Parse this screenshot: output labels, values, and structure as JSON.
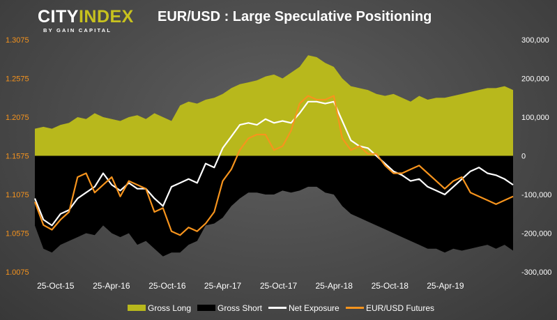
{
  "logo": {
    "part1": "CITY",
    "part2": "INDEX",
    "sub": "BY GAIN CAPITAL"
  },
  "chart_data": {
    "type": "area",
    "title": "EUR/USD : Large Speculative Positioning",
    "x": [
      "2015-08-18",
      "2015-09-15",
      "2015-10-13",
      "2015-11-10",
      "2015-12-08",
      "2016-01-05",
      "2016-02-02",
      "2016-03-01",
      "2016-03-29",
      "2016-04-26",
      "2016-05-24",
      "2016-06-21",
      "2016-07-19",
      "2016-08-16",
      "2016-09-13",
      "2016-10-11",
      "2016-11-08",
      "2016-12-06",
      "2017-01-03",
      "2017-01-31",
      "2017-02-28",
      "2017-03-28",
      "2017-04-25",
      "2017-05-23",
      "2017-06-20",
      "2017-07-18",
      "2017-08-15",
      "2017-09-12",
      "2017-10-10",
      "2017-11-07",
      "2017-12-05",
      "2018-01-02",
      "2018-01-30",
      "2018-02-27",
      "2018-03-27",
      "2018-04-24",
      "2018-05-22",
      "2018-06-19",
      "2018-07-17",
      "2018-08-14",
      "2018-09-11",
      "2018-10-09",
      "2018-11-06",
      "2018-12-04",
      "2019-01-01",
      "2019-01-29",
      "2019-02-26",
      "2019-03-26",
      "2019-04-23",
      "2019-05-21",
      "2019-06-18",
      "2019-07-16",
      "2019-08-13",
      "2019-09-10",
      "2019-10-08",
      "2019-11-05",
      "2019-12-03"
    ],
    "x_tick_labels": [
      "25-Oct-15",
      "25-Apr-16",
      "25-Oct-16",
      "25-Apr-17",
      "25-Oct-17",
      "25-Apr-18",
      "25-Oct-18",
      "25-Apr-19"
    ],
    "x_tick_dates": [
      "2015-10-25",
      "2016-04-25",
      "2016-10-25",
      "2017-04-25",
      "2017-10-25",
      "2018-04-25",
      "2018-10-25",
      "2019-04-25"
    ],
    "xlim": [
      "2015-08-18",
      "2019-12-03"
    ],
    "y_left": {
      "label": "",
      "ticks": [
        "1.3075",
        "1.2575",
        "1.2075",
        "1.1575",
        "1.1075",
        "1.0575",
        "1.0075"
      ],
      "range": [
        1.0075,
        1.3075
      ]
    },
    "y_right": {
      "label": "",
      "ticks": [
        "300,000",
        "200,000",
        "100,000",
        "0",
        "-100,000",
        "-200,000",
        "-300,000"
      ],
      "range": [
        -300000,
        300000
      ]
    },
    "series": [
      {
        "name": "Gross Long",
        "axis": "right",
        "color": "#b8b81c",
        "values": [
          70000,
          75000,
          70000,
          80000,
          85000,
          100000,
          95000,
          110000,
          100000,
          95000,
          90000,
          100000,
          105000,
          95000,
          110000,
          100000,
          90000,
          130000,
          140000,
          135000,
          145000,
          150000,
          160000,
          175000,
          185000,
          190000,
          195000,
          205000,
          210000,
          200000,
          215000,
          230000,
          260000,
          255000,
          240000,
          230000,
          200000,
          180000,
          175000,
          170000,
          160000,
          155000,
          160000,
          150000,
          140000,
          155000,
          145000,
          150000,
          150000,
          155000,
          160000,
          165000,
          170000,
          175000,
          175000,
          180000,
          170000
        ]
      },
      {
        "name": "Gross Short",
        "axis": "right",
        "color": "#000000",
        "values": [
          -180000,
          -240000,
          -250000,
          -230000,
          -220000,
          -210000,
          -200000,
          -205000,
          -180000,
          -200000,
          -210000,
          -200000,
          -230000,
          -220000,
          -240000,
          -260000,
          -250000,
          -250000,
          -230000,
          -220000,
          -180000,
          -175000,
          -160000,
          -130000,
          -110000,
          -95000,
          -95000,
          -100000,
          -100000,
          -90000,
          -95000,
          -90000,
          -80000,
          -80000,
          -95000,
          -100000,
          -130000,
          -150000,
          -160000,
          -170000,
          -180000,
          -190000,
          -200000,
          -210000,
          -220000,
          -230000,
          -240000,
          -240000,
          -250000,
          -240000,
          -245000,
          -240000,
          -235000,
          -230000,
          -240000,
          -230000,
          -245000
        ]
      },
      {
        "name": "Net Exposure",
        "axis": "right",
        "color": "#ffffff",
        "values": [
          -110000,
          -165000,
          -180000,
          -150000,
          -140000,
          -110000,
          -95000,
          -80000,
          -45000,
          -75000,
          -90000,
          -70000,
          -85000,
          -85000,
          -110000,
          -130000,
          -80000,
          -70000,
          -60000,
          -70000,
          -20000,
          -30000,
          20000,
          50000,
          80000,
          85000,
          80000,
          95000,
          85000,
          90000,
          85000,
          110000,
          140000,
          140000,
          135000,
          140000,
          90000,
          40000,
          25000,
          20000,
          0,
          -20000,
          -40000,
          -50000,
          -65000,
          -60000,
          -80000,
          -90000,
          -100000,
          -80000,
          -60000,
          -40000,
          -30000,
          -45000,
          -50000,
          -60000,
          -75000
        ]
      },
      {
        "name": "EUR/USD Futures",
        "axis": "left",
        "color": "#f7941d",
        "values": [
          1.098,
          1.068,
          1.062,
          1.075,
          1.085,
          1.13,
          1.135,
          1.11,
          1.12,
          1.13,
          1.105,
          1.125,
          1.12,
          1.115,
          1.085,
          1.09,
          1.06,
          1.055,
          1.065,
          1.06,
          1.07,
          1.085,
          1.125,
          1.14,
          1.165,
          1.18,
          1.185,
          1.185,
          1.165,
          1.17,
          1.19,
          1.225,
          1.235,
          1.23,
          1.23,
          1.235,
          1.18,
          1.165,
          1.17,
          1.16,
          1.16,
          1.145,
          1.135,
          1.135,
          1.14,
          1.145,
          1.135,
          1.125,
          1.115,
          1.125,
          1.13,
          1.11,
          1.105,
          1.1,
          1.095,
          1.1,
          1.105
        ]
      }
    ],
    "legend_position": "bottom",
    "grid": false
  }
}
